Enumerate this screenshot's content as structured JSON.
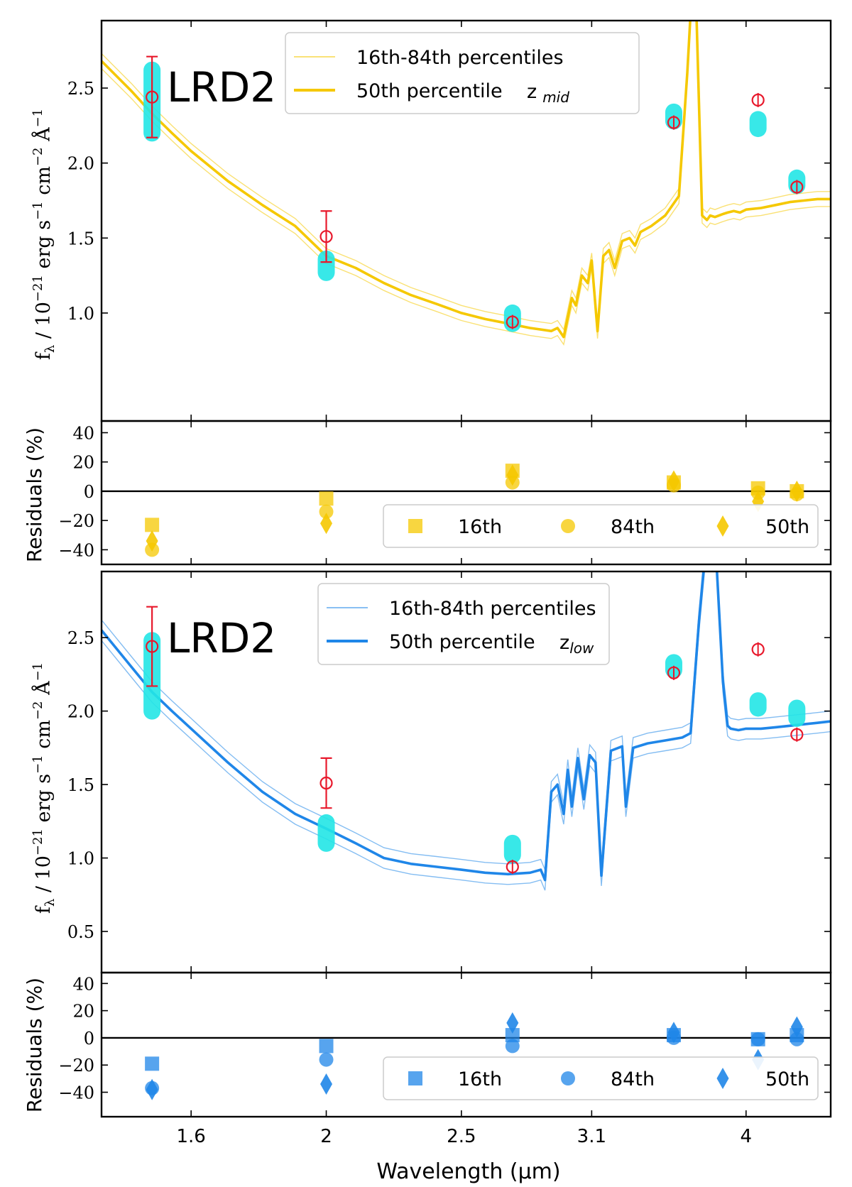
{
  "figure": {
    "x_axis": {
      "label": "Wavelength (μm)",
      "scale": "log",
      "range": [
        1.38,
        4.6
      ],
      "ticks": [
        1.6,
        2,
        2.5,
        3.1,
        4
      ],
      "tick_labels": [
        "1.6",
        "2",
        "2.5",
        "3.1",
        "4"
      ]
    },
    "y_axis_label": "f_λ / 10^-21 erg s^-1 cm^-2 Å^-1",
    "residuals_label": "Residuals (%)"
  },
  "chart_data": [
    {
      "type": "line",
      "panel": "spectrum",
      "name": "top",
      "title": "LRD2",
      "model_color": "#f5c800",
      "ylim": [
        0.28,
        2.95
      ],
      "yticks": [
        1.0,
        1.5,
        2.0,
        2.5
      ],
      "ytick_labels": [
        "1.0",
        "1.5",
        "2.0",
        "2.5"
      ],
      "legend": {
        "entries": [
          "16th-84th percentiles",
          "50th percentile"
        ],
        "tag": "z",
        "tag_sub": "mid",
        "placement": "top-center"
      },
      "model_50th": {
        "x": [
          1.38,
          1.45,
          1.5,
          1.55,
          1.6,
          1.7,
          1.8,
          1.9,
          2.0,
          2.1,
          2.2,
          2.3,
          2.4,
          2.5,
          2.6,
          2.7,
          2.8,
          2.9,
          2.93,
          2.96,
          3.0,
          3.02,
          3.05,
          3.08,
          3.1,
          3.13,
          3.16,
          3.19,
          3.22,
          3.26,
          3.3,
          3.33,
          3.36,
          3.42,
          3.5,
          3.58,
          3.63,
          3.66,
          3.68,
          3.72,
          3.75,
          3.77,
          3.8,
          3.85,
          3.88,
          3.92,
          3.96,
          4.0,
          4.1,
          4.2,
          4.3,
          4.4,
          4.5,
          4.6
        ],
        "y": [
          2.68,
          2.48,
          2.33,
          2.2,
          2.08,
          1.88,
          1.72,
          1.58,
          1.38,
          1.3,
          1.2,
          1.12,
          1.06,
          1.0,
          0.96,
          0.93,
          0.9,
          0.88,
          0.9,
          0.84,
          1.1,
          1.05,
          1.25,
          1.2,
          1.35,
          0.88,
          1.38,
          1.42,
          1.3,
          1.48,
          1.5,
          1.45,
          1.54,
          1.58,
          1.65,
          1.78,
          2.6,
          3.2,
          3.2,
          1.65,
          1.62,
          1.65,
          1.64,
          1.66,
          1.67,
          1.68,
          1.67,
          1.69,
          1.7,
          1.72,
          1.74,
          1.75,
          1.76,
          1.76
        ]
      },
      "percentile_band_offset": 0.05,
      "observed": {
        "x": [
          1.5,
          2.0,
          2.72,
          3.55,
          4.08,
          4.35
        ],
        "y": [
          2.44,
          1.51,
          0.94,
          2.27,
          2.42,
          1.84
        ],
        "yerr": [
          0.27,
          0.17,
          0.03,
          0.03,
          0.03,
          0.03
        ]
      },
      "model_photometry": {
        "x": [
          1.5,
          2.0,
          2.72,
          3.55,
          4.08,
          4.35
        ],
        "y_low": [
          2.2,
          1.27,
          0.93,
          2.28,
          2.23,
          1.85
        ],
        "y_high": [
          2.62,
          1.36,
          1.0,
          2.34,
          2.29,
          1.9
        ]
      }
    },
    {
      "type": "scatter",
      "panel": "residuals",
      "name": "top-residuals",
      "ylim": [
        -50,
        48
      ],
      "yticks": [
        -40,
        -20,
        0,
        20,
        40
      ],
      "ytick_labels": [
        "−40",
        "−20",
        "0",
        "20",
        "40"
      ],
      "color": "#f5c800",
      "legend": {
        "entries": [
          "16th",
          "84th",
          "50th"
        ],
        "placement": "lower-right"
      },
      "x": [
        1.5,
        2.0,
        2.72,
        3.55,
        4.08,
        4.35
      ],
      "series": [
        {
          "name": "16th",
          "marker": "square",
          "values": [
            -23,
            -5,
            14,
            6,
            2,
            0
          ]
        },
        {
          "name": "84th",
          "marker": "circle",
          "values": [
            -40,
            -14,
            6,
            4,
            -1,
            -2
          ]
        },
        {
          "name": "50th",
          "marker": "diamond",
          "values": [
            -34,
            -22,
            11,
            7,
            -7,
            0
          ]
        }
      ]
    },
    {
      "type": "line",
      "panel": "spectrum",
      "name": "bottom",
      "title": "LRD2",
      "model_color": "#1f86e8",
      "ylim": [
        0.22,
        2.95
      ],
      "yticks": [
        0.5,
        1.0,
        1.5,
        2.0,
        2.5
      ],
      "ytick_labels": [
        "0.5",
        "1.0",
        "1.5",
        "2.0",
        "2.5"
      ],
      "legend": {
        "entries": [
          "16th-84th percentiles",
          "50th percentile"
        ],
        "tag": "z",
        "tag_sub": "low",
        "placement": "top-center"
      },
      "model_50th": {
        "x": [
          1.38,
          1.45,
          1.5,
          1.55,
          1.6,
          1.7,
          1.8,
          1.9,
          2.0,
          2.1,
          2.2,
          2.3,
          2.4,
          2.5,
          2.6,
          2.7,
          2.8,
          2.85,
          2.87,
          2.9,
          2.93,
          2.96,
          2.98,
          3.0,
          3.03,
          3.06,
          3.09,
          3.12,
          3.15,
          3.2,
          3.26,
          3.28,
          3.32,
          3.4,
          3.5,
          3.6,
          3.65,
          3.7,
          3.75,
          3.8,
          3.85,
          3.88,
          3.9,
          3.95,
          4.0,
          4.1,
          4.2,
          4.3,
          4.4,
          4.5,
          4.6
        ],
        "y": [
          2.55,
          2.3,
          2.13,
          2.0,
          1.88,
          1.65,
          1.45,
          1.3,
          1.2,
          1.1,
          1.0,
          0.96,
          0.94,
          0.92,
          0.9,
          0.89,
          0.9,
          0.92,
          0.85,
          1.45,
          1.5,
          1.3,
          1.6,
          1.35,
          1.68,
          1.4,
          1.7,
          1.65,
          0.88,
          1.73,
          1.76,
          1.35,
          1.75,
          1.78,
          1.8,
          1.82,
          1.85,
          2.6,
          3.2,
          3.2,
          2.2,
          1.9,
          1.88,
          1.87,
          1.88,
          1.88,
          1.89,
          1.9,
          1.91,
          1.92,
          1.93
        ]
      },
      "percentile_band_offset": 0.07,
      "observed": {
        "x": [
          1.5,
          2.0,
          2.72,
          3.55,
          4.08,
          4.35
        ],
        "y": [
          2.44,
          1.51,
          0.94,
          2.26,
          2.42,
          1.84
        ],
        "yerr": [
          0.27,
          0.17,
          0.03,
          0.03,
          0.03,
          0.03
        ]
      },
      "model_photometry": {
        "x": [
          1.5,
          2.0,
          2.72,
          3.55,
          4.08,
          4.35
        ],
        "y_low": [
          2.0,
          1.1,
          1.02,
          2.28,
          2.02,
          1.95
        ],
        "y_high": [
          2.48,
          1.24,
          1.1,
          2.33,
          2.07,
          2.02
        ]
      }
    },
    {
      "type": "scatter",
      "panel": "residuals",
      "name": "bottom-residuals",
      "ylim": [
        -58,
        48
      ],
      "yticks": [
        -40,
        -20,
        0,
        20,
        40
      ],
      "ytick_labels": [
        "−40",
        "−20",
        "0",
        "20",
        "40"
      ],
      "color": "#1f86e8",
      "legend": {
        "entries": [
          "16th",
          "84th",
          "50th"
        ],
        "placement": "lower-right"
      },
      "x": [
        1.5,
        2.0,
        2.72,
        3.55,
        4.08,
        4.35
      ],
      "series": [
        {
          "name": "16th",
          "marker": "square",
          "values": [
            -19,
            -6,
            2,
            2,
            -1,
            2
          ]
        },
        {
          "name": "84th",
          "marker": "circle",
          "values": [
            -37,
            -16,
            -6,
            0,
            -1,
            -1
          ]
        },
        {
          "name": "50th",
          "marker": "diamond",
          "values": [
            -38,
            -34,
            11,
            4,
            -16,
            8
          ]
        }
      ]
    }
  ],
  "colors": {
    "observed": "#e8192c",
    "model_photometry": "#22e6e6",
    "axis": "#000000"
  }
}
